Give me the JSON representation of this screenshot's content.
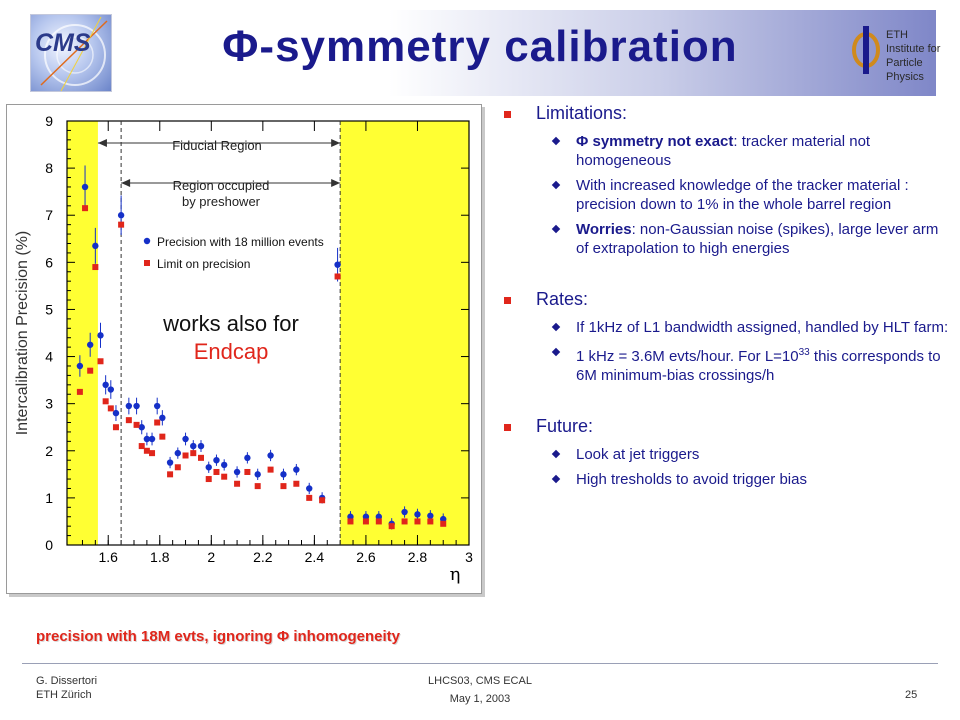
{
  "header": {
    "title": "Φ-symmetry  calibration",
    "cms_logo_text": "CMS",
    "eth_logo_lines": [
      "ETH Institute for",
      "Particle Physics"
    ]
  },
  "colors": {
    "title": "#1a1a8c",
    "accent_red": "#e0261b",
    "series_blue": "#1530c8",
    "series_red": "#e0261b",
    "band_yellow": "#ffff33"
  },
  "plot_note": {
    "line1": "works also for",
    "line2": "Endcap"
  },
  "caption": "precision with 18M evts, ignoring Φ inhomogeneity",
  "chart_data": {
    "type": "scatter",
    "xlabel": "η",
    "ylabel": "Intercalibration Precision (%)",
    "xlim": [
      1.44,
      3.0
    ],
    "ylim": [
      0,
      9
    ],
    "x_ticks": [
      "1.6",
      "1.8",
      "2",
      "2.2",
      "2.4",
      "2.6",
      "2.8",
      "3"
    ],
    "y_ticks": [
      "0",
      "1",
      "2",
      "3",
      "4",
      "5",
      "6",
      "7",
      "8",
      "9"
    ],
    "annotations": {
      "fiducial": "Fiducial Region",
      "preshower_line1": "Region occupied",
      "preshower_line2": "by preshower"
    },
    "legend_position": "center-right",
    "series": [
      {
        "name": "Precision with 18 million events",
        "color": "#1530c8",
        "x": [
          1.49,
          1.51,
          1.53,
          1.55,
          1.57,
          1.59,
          1.61,
          1.63,
          1.65,
          1.68,
          1.71,
          1.73,
          1.75,
          1.77,
          1.79,
          1.81,
          1.84,
          1.87,
          1.9,
          1.93,
          1.96,
          1.99,
          2.02,
          2.05,
          2.1,
          2.14,
          2.18,
          2.23,
          2.28,
          2.33,
          2.38,
          2.43,
          2.49,
          2.54,
          2.6,
          2.65,
          2.7,
          2.75,
          2.8,
          2.85,
          2.9
        ],
        "y": [
          3.8,
          7.6,
          4.25,
          6.35,
          4.45,
          3.4,
          3.3,
          2.8,
          7.0,
          2.95,
          2.95,
          2.5,
          2.25,
          2.25,
          2.95,
          2.7,
          1.75,
          1.95,
          2.25,
          2.1,
          2.1,
          1.65,
          1.8,
          1.7,
          1.55,
          1.85,
          1.5,
          1.9,
          1.5,
          1.6,
          1.2,
          1.0,
          5.95,
          0.6,
          0.6,
          0.6,
          0.45,
          0.7,
          0.65,
          0.62,
          0.55
        ]
      },
      {
        "name": "Limit on precision",
        "color": "#e0261b",
        "x": [
          1.49,
          1.51,
          1.53,
          1.55,
          1.57,
          1.59,
          1.61,
          1.63,
          1.65,
          1.68,
          1.71,
          1.73,
          1.75,
          1.77,
          1.79,
          1.81,
          1.84,
          1.87,
          1.9,
          1.93,
          1.96,
          1.99,
          2.02,
          2.05,
          2.1,
          2.14,
          2.18,
          2.23,
          2.28,
          2.33,
          2.38,
          2.43,
          2.49,
          2.54,
          2.6,
          2.65,
          2.7,
          2.75,
          2.8,
          2.85,
          2.9
        ],
        "y": [
          3.25,
          7.15,
          3.7,
          5.9,
          3.9,
          3.05,
          2.9,
          2.5,
          6.8,
          2.65,
          2.55,
          2.1,
          2.0,
          1.95,
          2.6,
          2.3,
          1.5,
          1.65,
          1.9,
          1.95,
          1.85,
          1.4,
          1.55,
          1.45,
          1.3,
          1.55,
          1.25,
          1.6,
          1.25,
          1.3,
          1.0,
          0.95,
          5.7,
          0.5,
          0.5,
          0.5,
          0.4,
          0.5,
          0.5,
          0.5,
          0.45
        ]
      }
    ]
  },
  "sections": [
    {
      "heading": "Limitations:",
      "items": [
        {
          "pre": "Φ  symmetry not exact",
          "text": ": tracker material not homogeneous"
        },
        {
          "pre": "",
          "text": "With increased knowledge of the tracker material :  precision down to 1% in the whole barrel region"
        },
        {
          "pre": "Worries",
          "text": ": non-Gaussian noise (spikes), large lever arm of extrapolation to high energies"
        }
      ]
    },
    {
      "heading": "Rates:",
      "items": [
        {
          "text": "If 1kHz of L1 bandwidth assigned, handled by HLT farm:"
        },
        {
          "text_a": "1 kHz = 3.6M evts/hour. For L=10",
          "sup": "33",
          "text_b": "this corresponds to 6M minimum-bias crossings/h"
        }
      ]
    },
    {
      "heading": "Future:",
      "items": [
        {
          "text": "Look at jet triggers"
        },
        {
          "text": "High tresholds to avoid trigger bias"
        }
      ]
    }
  ],
  "footer": {
    "author": "G. Dissertori",
    "affiliation": "ETH Zürich",
    "conf": "LHCS03,   CMS ECAL",
    "date": "May 1, 2003",
    "page": "25"
  }
}
